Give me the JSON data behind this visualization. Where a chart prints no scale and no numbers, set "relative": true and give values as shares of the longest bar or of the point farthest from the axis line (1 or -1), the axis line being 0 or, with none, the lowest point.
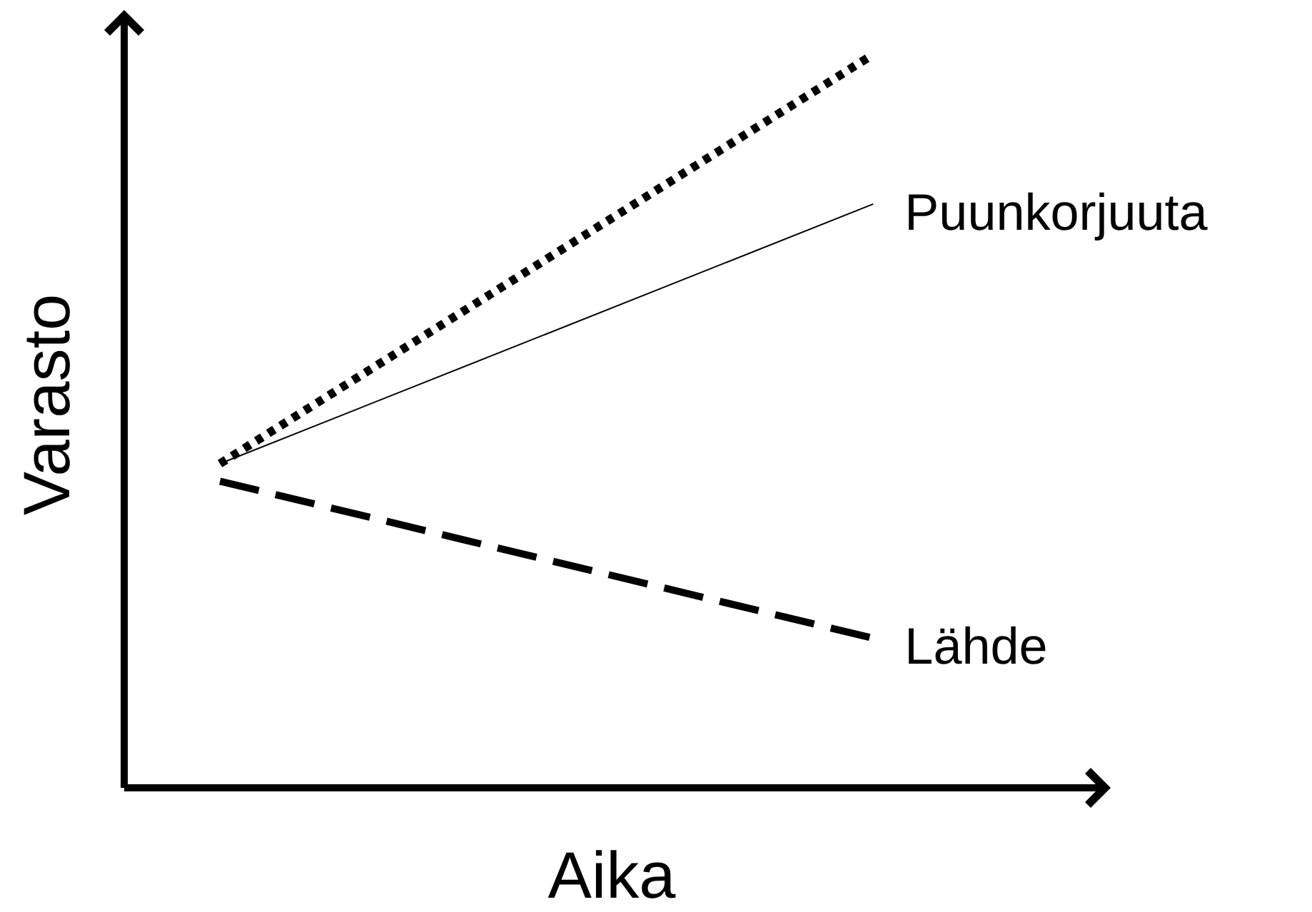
{
  "chart_data": {
    "type": "line",
    "xlabel": "Aika",
    "ylabel": "Varasto",
    "relative": true,
    "legend": false,
    "categories": [
      null,
      null
    ],
    "series": [
      {
        "color": "#000000",
        "line_style": "dotted",
        "values": [
          0.442,
          1
        ]
      },
      {
        "name": "Puunkorjuuta",
        "color": "#000000",
        "line_style": "solid",
        "values": [
          0.442,
          0.796
        ]
      },
      {
        "name": "Lähde",
        "color": "#000000",
        "line_style": "dashed",
        "values": [
          0.418,
          0.204
        ]
      }
    ]
  }
}
